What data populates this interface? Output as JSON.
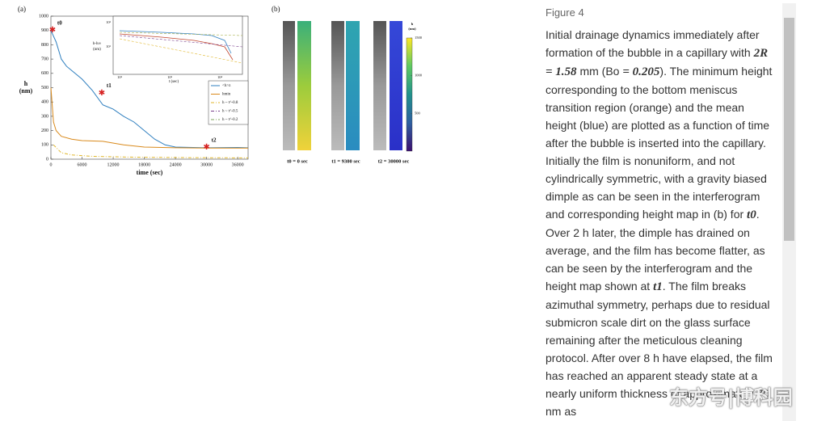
{
  "figure": {
    "panel_a": {
      "label": "(a)",
      "y_label": [
        "h",
        "(nm)"
      ],
      "x_label": "time (sec)",
      "xlim": [
        0,
        38000
      ],
      "ylim": [
        0,
        1000
      ],
      "xticks": [
        0,
        6000,
        12000,
        18000,
        24000,
        30000,
        36000
      ],
      "yticks": [
        0,
        100,
        200,
        300,
        400,
        500,
        600,
        700,
        800,
        900,
        1000
      ],
      "series": [
        {
          "name": "<h>z",
          "color": "#2f7fbf",
          "dash": "none",
          "x": [
            0,
            1000,
            2000,
            3000,
            4000,
            6000,
            8000,
            10000,
            12000,
            14000,
            16000,
            18000,
            20000,
            22000,
            24000,
            30000,
            36000,
            38000
          ],
          "values": [
            900,
            820,
            700,
            650,
            620,
            560,
            480,
            380,
            350,
            300,
            260,
            200,
            140,
            100,
            85,
            80,
            82,
            80
          ]
        },
        {
          "name": "hmin",
          "color": "#d98a1c",
          "dash": "none",
          "x": [
            0,
            500,
            1000,
            2000,
            4000,
            6000,
            10000,
            14000,
            18000,
            24000,
            30000,
            38000
          ],
          "values": [
            500,
            260,
            200,
            160,
            140,
            130,
            125,
            100,
            85,
            80,
            78,
            78
          ]
        },
        {
          "name": "h ~ t^-0.8",
          "color": "#e0b62a",
          "dash": "4 2 1 2",
          "x": [
            500,
            2000,
            4000,
            8000,
            16000,
            26000,
            38000
          ],
          "values": [
            100,
            45,
            30,
            20,
            14,
            11,
            9
          ]
        },
        {
          "name": "h ~ t^-0.5",
          "color": "#7a3f8c",
          "dash": "4 2 1 2",
          "x": [],
          "values": []
        },
        {
          "name": "h ~ t^-0.2",
          "color": "#7fa35a",
          "dash": "4 2 1 2",
          "x": [],
          "values": []
        }
      ],
      "markers": [
        {
          "label": "t0",
          "x": 300,
          "y": 900
        },
        {
          "label": "t1",
          "x": 9800,
          "y": 460
        },
        {
          "label": "t2",
          "x": 30000,
          "y": 80
        }
      ],
      "inset": {
        "y_label": [
          "h-h∞",
          "(nm)"
        ],
        "x_label": "t (sec)",
        "xticks": [
          "10²",
          "10³",
          "10⁴"
        ],
        "yticks": [
          "10²",
          "10¹"
        ]
      }
    },
    "panel_b": {
      "label": "(b)",
      "captions": [
        "t0 = 0 sec",
        "t1 = 9300 sec",
        "t2 = 30000 sec"
      ],
      "colorbar_label": [
        "h",
        "(nm)"
      ],
      "colorbar_range": [
        0,
        1500
      ],
      "colorbar_ticks": [
        500,
        1000,
        1500
      ]
    }
  },
  "caption": {
    "title": "Figure 4",
    "parts": [
      "Initial drainage dynamics immediately after formation of the bubble in a capillary with ",
      {
        "math": "2R = 1.58"
      },
      " mm (Bo ",
      {
        "math": "= 0.205"
      },
      "). The minimum height corresponding to the bottom meniscus transition region (orange) and the mean height (blue) are plotted as a function of time after the bubble is inserted into the capillary. Initially the film is nonuniform, and not cylindrically symmetric, with a gravity biased dimple as can be seen in the interferogram and corresponding height map in (b) for ",
      {
        "math": "t0"
      },
      ". Over 2 h later, the dimple has drained on average, and the film has become flatter, as can be seen by the interferogram and the height map shown at ",
      {
        "math": "t1"
      },
      ". The film breaks azimuthal symmetry, perhaps due to residual submicron scale dirt on the glass surface remaining after the meticulous cleaning protocol. After over 8 h have elapsed, the film has reached an apparent steady state at a nearly uniform thickness of approximately 70 nm as"
    ]
  },
  "watermark": "东方号|博科园"
}
